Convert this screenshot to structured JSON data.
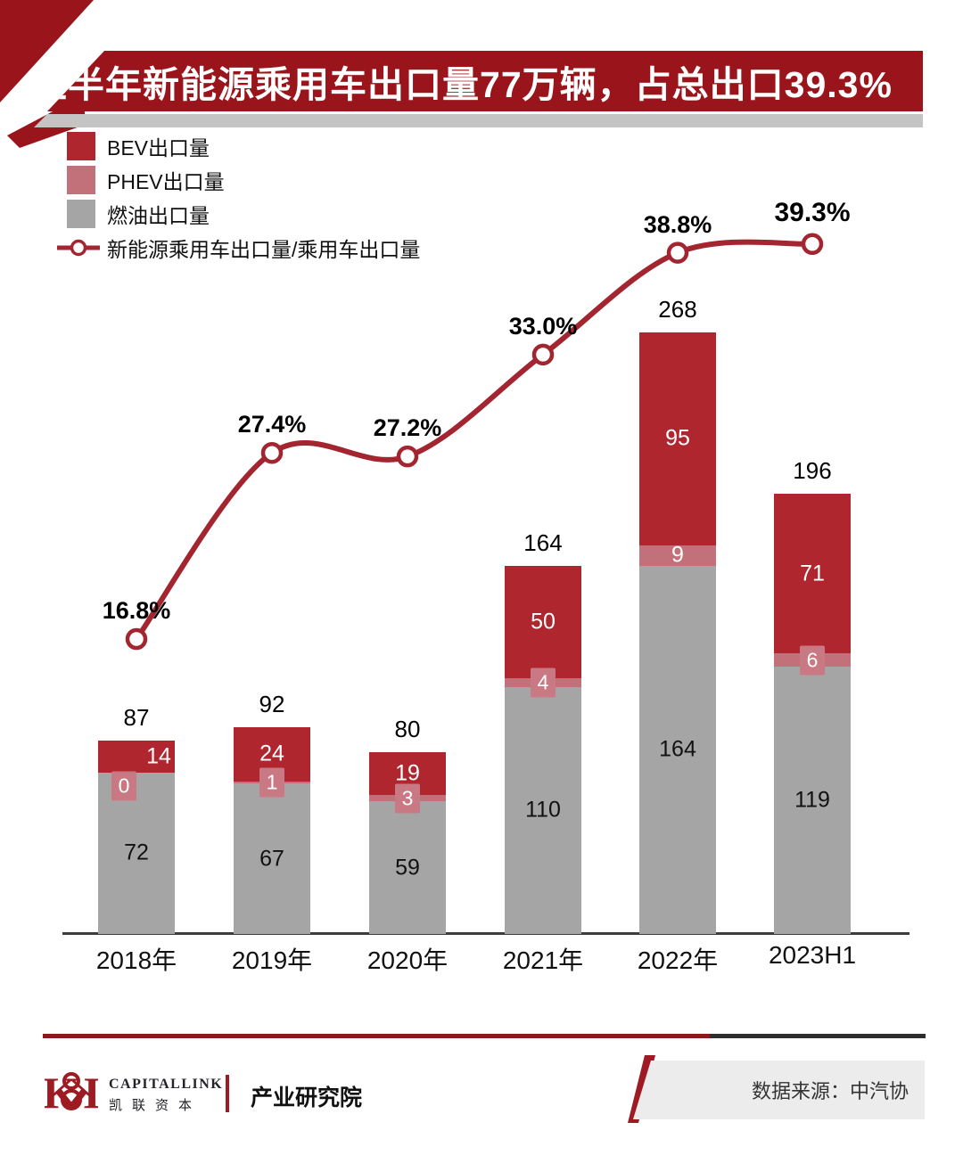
{
  "header": {
    "title": "上半年新能源乘用车出口量77万辆，占总出口39.3%"
  },
  "legend": {
    "items": [
      {
        "label": "BEV出口量"
      },
      {
        "label": "PHEV出口量"
      },
      {
        "label": "燃油出口量"
      },
      {
        "label": "新能源乘用车出口量/乘用车出口量"
      }
    ]
  },
  "chart_data": {
    "type": "bar",
    "subtype": "stacked-bars-with-percent-line",
    "categories": [
      "2018年",
      "2019年",
      "2020年",
      "2021年",
      "2022年",
      "2023H1"
    ],
    "series": [
      {
        "name": "燃油出口量",
        "values": [
          72,
          67,
          59,
          110,
          164,
          119
        ]
      },
      {
        "name": "PHEV出口量",
        "values": [
          0,
          1,
          3,
          4,
          9,
          6
        ]
      },
      {
        "name": "BEV出口量",
        "values": [
          14,
          24,
          19,
          50,
          95,
          71
        ]
      }
    ],
    "totals": [
      87,
      92,
      80,
      164,
      268,
      196
    ],
    "line": {
      "name": "新能源乘用车出口量/乘用车出口量",
      "values_pct": [
        16.8,
        27.4,
        27.2,
        33.0,
        38.8,
        39.3
      ],
      "labels": [
        "16.8%",
        "27.4%",
        "27.2%",
        "33.0%",
        "38.8%",
        "39.3%"
      ]
    },
    "legend_position": "top-left",
    "grid": false
  },
  "colors": {
    "banner_red": "#9A151B",
    "bev_red": "#B0262F",
    "phev_rose": "#C2707A",
    "phev_box": "#C97983",
    "fuel_gray": "#A5A5A5",
    "line_red": "#A22530",
    "shadow_gray": "#C4C4C4",
    "divider_red": "#8C181C",
    "divider_dark": "#2E2E2E",
    "source_box_gray": "#ECECEC",
    "logo_red": "#9E1B23"
  },
  "footer": {
    "logo_text_en": "CAPITALLINK",
    "logo_text_cn": "凯联资本",
    "division": "产业研究院",
    "source": "数据来源：中汽协"
  }
}
